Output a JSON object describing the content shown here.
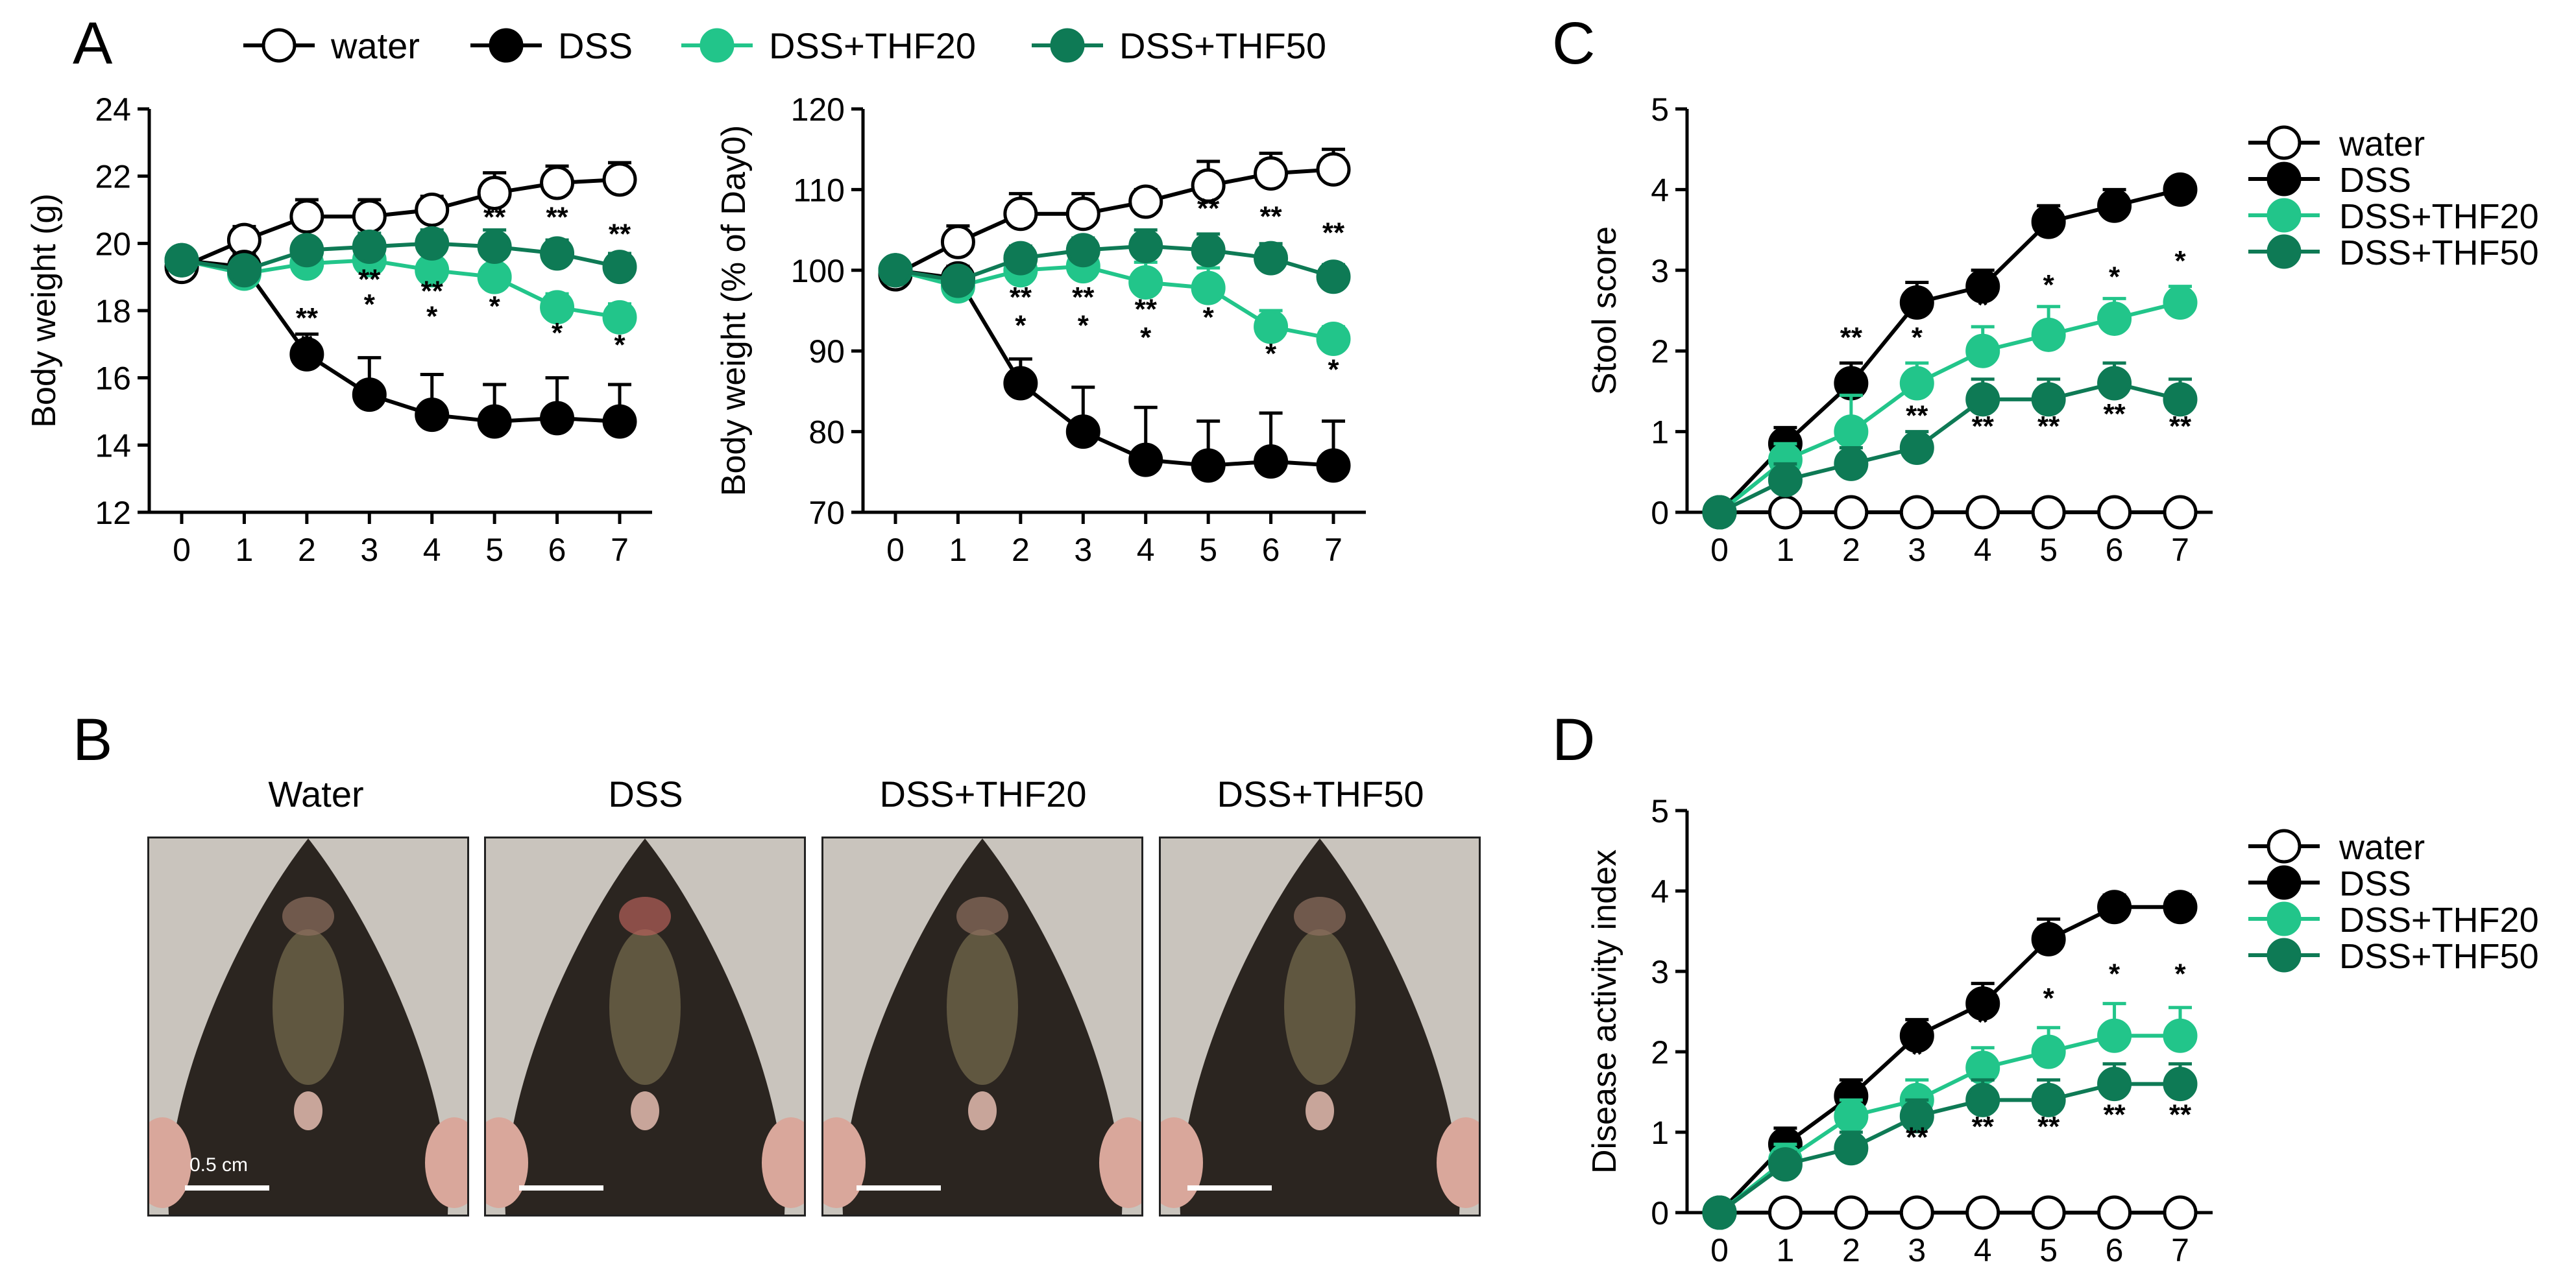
{
  "panel_letters": {
    "a": "A",
    "b": "B",
    "c": "C",
    "d": "D"
  },
  "colors": {
    "water": "#ffffff",
    "dss": "#000000",
    "thf20": "#22c58a",
    "thf50": "#0e7a55"
  },
  "legends": {
    "top": [
      "water",
      "DSS",
      "DSS+THF20",
      "DSS+THF50"
    ],
    "right": [
      "water",
      "DSS",
      "DSS+THF20",
      "DSS+THF50"
    ]
  },
  "photos": {
    "titles": [
      "Water",
      "DSS",
      "DSS+THF20",
      "DSS+THF50"
    ],
    "scale_label": "0.5 cm"
  },
  "chart_data": [
    {
      "id": "A1",
      "type": "line",
      "ylabel": "Body weight (g)",
      "ylim": [
        12,
        24
      ],
      "yticks": [
        12,
        14,
        16,
        18,
        20,
        22,
        24
      ],
      "x": [
        0,
        1,
        2,
        3,
        4,
        5,
        6,
        7
      ],
      "xticklabels": [
        "0",
        "1",
        "2",
        "3",
        "4",
        "5",
        "6",
        "7"
      ],
      "series": [
        {
          "name": "water",
          "values": [
            19.3,
            20.1,
            20.8,
            20.8,
            21.0,
            21.5,
            21.8,
            21.9
          ],
          "err": [
            0.3,
            0.4,
            0.5,
            0.5,
            0.4,
            0.6,
            0.5,
            0.5
          ]
        },
        {
          "name": "DSS",
          "values": [
            19.5,
            19.3,
            16.7,
            15.5,
            14.9,
            14.7,
            14.8,
            14.7
          ],
          "err": [
            0.3,
            0.4,
            0.6,
            1.1,
            1.2,
            1.1,
            1.2,
            1.1
          ]
        },
        {
          "name": "DSS+THF20",
          "values": [
            19.5,
            19.1,
            19.4,
            19.5,
            19.2,
            19.0,
            18.1,
            17.8
          ],
          "err": [
            0.3,
            0.3,
            0.5,
            0.4,
            0.5,
            0.6,
            0.4,
            0.4
          ]
        },
        {
          "name": "DSS+THF50",
          "values": [
            19.5,
            19.2,
            19.8,
            19.9,
            20.0,
            19.9,
            19.7,
            19.3
          ],
          "err": [
            0.3,
            0.3,
            0.3,
            0.4,
            0.4,
            0.5,
            0.4,
            0.4
          ]
        }
      ],
      "annotations": [
        {
          "x": 2,
          "y": 17.5,
          "text": "**"
        },
        {
          "x": 2,
          "y": 16.75,
          "text": "*"
        },
        {
          "x": 3,
          "y": 18.65,
          "text": "**"
        },
        {
          "x": 3,
          "y": 17.9,
          "text": "*"
        },
        {
          "x": 4,
          "y": 18.3,
          "text": "**"
        },
        {
          "x": 4,
          "y": 17.55,
          "text": "*"
        },
        {
          "x": 5,
          "y": 20.5,
          "text": "**"
        },
        {
          "x": 5,
          "y": 17.85,
          "text": "*"
        },
        {
          "x": 6,
          "y": 20.5,
          "text": "**"
        },
        {
          "x": 6,
          "y": 17.05,
          "text": "*"
        },
        {
          "x": 7,
          "y": 20.0,
          "text": "**"
        },
        {
          "x": 7,
          "y": 16.7,
          "text": "*"
        }
      ]
    },
    {
      "id": "A2",
      "type": "line",
      "ylabel": "Body weight (% of Day0)",
      "ylim": [
        70,
        120
      ],
      "yticks": [
        70,
        80,
        90,
        100,
        110,
        120
      ],
      "x": [
        0,
        1,
        2,
        3,
        4,
        5,
        6,
        7
      ],
      "xticklabels": [
        "0",
        "1",
        "2",
        "3",
        "4",
        "5",
        "6",
        "7"
      ],
      "series": [
        {
          "name": "water",
          "values": [
            99.5,
            103.5,
            107.0,
            107.0,
            108.5,
            110.5,
            112.0,
            112.5
          ],
          "err": [
            1.0,
            2.0,
            2.5,
            2.5,
            1.5,
            3.0,
            2.5,
            2.5
          ]
        },
        {
          "name": "DSS",
          "values": [
            100.0,
            99.0,
            86.0,
            80.0,
            76.5,
            75.8,
            76.3,
            75.8
          ],
          "err": [
            1.0,
            1.5,
            3.0,
            5.5,
            6.5,
            5.5,
            6.0,
            5.5
          ]
        },
        {
          "name": "DSS+THF20",
          "values": [
            100.0,
            98.0,
            100.0,
            100.5,
            98.5,
            97.8,
            93.0,
            91.5
          ],
          "err": [
            1.0,
            1.0,
            2.0,
            2.0,
            2.5,
            2.5,
            2.0,
            1.5
          ]
        },
        {
          "name": "DSS+THF50",
          "values": [
            100.0,
            98.7,
            101.5,
            102.5,
            103.0,
            102.5,
            101.5,
            99.2
          ],
          "err": [
            1.0,
            1.0,
            1.5,
            1.5,
            2.0,
            2.0,
            1.8,
            1.5
          ]
        }
      ],
      "annotations": [
        {
          "x": 2,
          "y": 95.5,
          "text": "**"
        },
        {
          "x": 2,
          "y": 92.0,
          "text": "*"
        },
        {
          "x": 3,
          "y": 95.5,
          "text": "**"
        },
        {
          "x": 3,
          "y": 92.0,
          "text": "*"
        },
        {
          "x": 4,
          "y": 94.0,
          "text": "**"
        },
        {
          "x": 4,
          "y": 90.5,
          "text": "*"
        },
        {
          "x": 5,
          "y": 106.5,
          "text": "**"
        },
        {
          "x": 5,
          "y": 93.0,
          "text": "*"
        },
        {
          "x": 6,
          "y": 105.5,
          "text": "**"
        },
        {
          "x": 6,
          "y": 88.5,
          "text": "*"
        },
        {
          "x": 7,
          "y": 103.5,
          "text": "**"
        },
        {
          "x": 7,
          "y": 86.5,
          "text": "*"
        }
      ]
    },
    {
      "id": "C",
      "type": "line",
      "ylabel": "Stool score",
      "ylim": [
        0,
        5
      ],
      "yticks": [
        0,
        1,
        2,
        3,
        4,
        5
      ],
      "x": [
        0,
        1,
        2,
        3,
        4,
        5,
        6,
        7
      ],
      "xticklabels": [
        "0",
        "1",
        "2",
        "3",
        "4",
        "5",
        "6",
        "7"
      ],
      "series": [
        {
          "name": "water",
          "values": [
            0,
            0,
            0,
            0,
            0,
            0,
            0,
            0
          ],
          "err": [
            0,
            0,
            0,
            0,
            0,
            0,
            0,
            0
          ]
        },
        {
          "name": "DSS",
          "values": [
            0,
            0.85,
            1.6,
            2.6,
            2.8,
            3.6,
            3.8,
            4.0
          ],
          "err": [
            0,
            0.2,
            0.25,
            0.25,
            0.2,
            0.2,
            0.2,
            0.1
          ]
        },
        {
          "name": "DSS+THF20",
          "values": [
            0,
            0.65,
            1.0,
            1.6,
            2.0,
            2.2,
            2.4,
            2.6
          ],
          "err": [
            0,
            0.2,
            0.45,
            0.25,
            0.3,
            0.35,
            0.25,
            0.2
          ]
        },
        {
          "name": "DSS+THF50",
          "values": [
            0,
            0.4,
            0.6,
            0.8,
            1.4,
            1.4,
            1.6,
            1.4
          ],
          "err": [
            0,
            0.2,
            0.2,
            0.2,
            0.25,
            0.25,
            0.25,
            0.25
          ]
        }
      ],
      "annotations": [
        {
          "x": 2,
          "y": 2.05,
          "text": "**"
        },
        {
          "x": 3,
          "y": 2.05,
          "text": "*"
        },
        {
          "x": 3,
          "y": 1.08,
          "text": "**"
        },
        {
          "x": 4,
          "y": 2.45,
          "text": "*"
        },
        {
          "x": 4,
          "y": 0.95,
          "text": "**"
        },
        {
          "x": 5,
          "y": 2.7,
          "text": "*"
        },
        {
          "x": 5,
          "y": 0.95,
          "text": "**"
        },
        {
          "x": 6,
          "y": 2.8,
          "text": "*"
        },
        {
          "x": 6,
          "y": 1.1,
          "text": "**"
        },
        {
          "x": 7,
          "y": 3.0,
          "text": "*"
        },
        {
          "x": 7,
          "y": 0.95,
          "text": "**"
        }
      ]
    },
    {
      "id": "D",
      "type": "line",
      "ylabel": "Disease activity index",
      "ylim": [
        0,
        5
      ],
      "yticks": [
        0,
        1,
        2,
        3,
        4,
        5
      ],
      "x": [
        0,
        1,
        2,
        3,
        4,
        5,
        6,
        7
      ],
      "xticklabels": [
        "0",
        "1",
        "2",
        "3",
        "4",
        "5",
        "6",
        "7"
      ],
      "series": [
        {
          "name": "water",
          "values": [
            0,
            0,
            0,
            0,
            0,
            0,
            0,
            0
          ],
          "err": [
            0,
            0,
            0,
            0,
            0,
            0,
            0,
            0
          ]
        },
        {
          "name": "DSS",
          "values": [
            0,
            0.85,
            1.45,
            2.2,
            2.6,
            3.4,
            3.8,
            3.8
          ],
          "err": [
            0,
            0.2,
            0.2,
            0.2,
            0.25,
            0.25,
            0.15,
            0.15
          ]
        },
        {
          "name": "DSS+THF20",
          "values": [
            0,
            0.65,
            1.2,
            1.4,
            1.8,
            2.0,
            2.2,
            2.2
          ],
          "err": [
            0,
            0.2,
            0.2,
            0.25,
            0.25,
            0.3,
            0.4,
            0.35
          ]
        },
        {
          "name": "DSS+THF50",
          "values": [
            0,
            0.6,
            0.8,
            1.2,
            1.4,
            1.4,
            1.6,
            1.6
          ],
          "err": [
            0,
            0.15,
            0.2,
            0.2,
            0.25,
            0.25,
            0.25,
            0.25
          ]
        }
      ],
      "annotations": [
        {
          "x": 3,
          "y": 1.85,
          "text": "*"
        },
        {
          "x": 3,
          "y": 0.82,
          "text": "**"
        },
        {
          "x": 4,
          "y": 2.25,
          "text": "*"
        },
        {
          "x": 4,
          "y": 0.95,
          "text": "**"
        },
        {
          "x": 5,
          "y": 2.55,
          "text": "*"
        },
        {
          "x": 5,
          "y": 0.95,
          "text": "**"
        },
        {
          "x": 6,
          "y": 2.85,
          "text": "*"
        },
        {
          "x": 6,
          "y": 1.1,
          "text": "**"
        },
        {
          "x": 7,
          "y": 2.85,
          "text": "*"
        },
        {
          "x": 7,
          "y": 1.1,
          "text": "**"
        }
      ]
    }
  ]
}
